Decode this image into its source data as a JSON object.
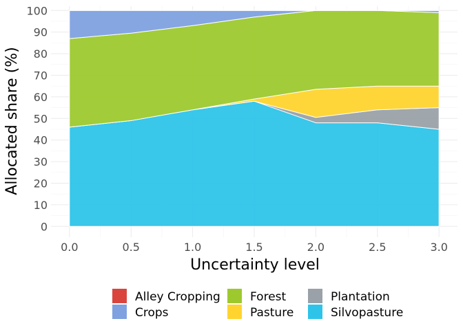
{
  "chart_data": {
    "type": "area",
    "stacked": true,
    "xlabel": "Uncertainty level",
    "ylabel": "Allocated share (%)",
    "x": [
      0.0,
      0.5,
      1.0,
      1.5,
      2.0,
      2.5,
      3.0
    ],
    "x_tick_labels": [
      "0.0",
      "0.5",
      "1.0",
      "1.5",
      "2.0",
      "2.5",
      "3.0"
    ],
    "y_ticks": [
      0,
      10,
      20,
      30,
      40,
      50,
      60,
      70,
      80,
      90,
      100
    ],
    "xlim": [
      -0.15,
      3.15
    ],
    "ylim": [
      -5,
      102
    ],
    "grid": true,
    "legend_position": "bottom",
    "series": [
      {
        "name": "Silvopasture",
        "color": "#2EC4E9",
        "values": [
          46,
          49,
          54,
          58,
          48,
          48,
          45
        ]
      },
      {
        "name": "Plantation",
        "color": "#9AA1A8",
        "values": [
          0,
          0,
          0,
          0,
          2.5,
          6,
          10
        ]
      },
      {
        "name": "Pasture",
        "color": "#FFD42E",
        "values": [
          0,
          0,
          0,
          1,
          13,
          11,
          10
        ]
      },
      {
        "name": "Forest",
        "color": "#9DC92E",
        "values": [
          41,
          40.5,
          39,
          38,
          36.5,
          35,
          34
        ]
      },
      {
        "name": "Crops",
        "color": "#7FA1E0",
        "values": [
          13,
          10.5,
          7,
          3,
          0,
          0,
          1
        ]
      },
      {
        "name": "Alley Cropping",
        "color": "#D9453D",
        "values": [
          0,
          0,
          0,
          0,
          0,
          0,
          0
        ]
      }
    ],
    "legend_order": [
      "Alley Cropping",
      "Crops",
      "Forest",
      "Pasture",
      "Plantation",
      "Silvopasture"
    ]
  }
}
